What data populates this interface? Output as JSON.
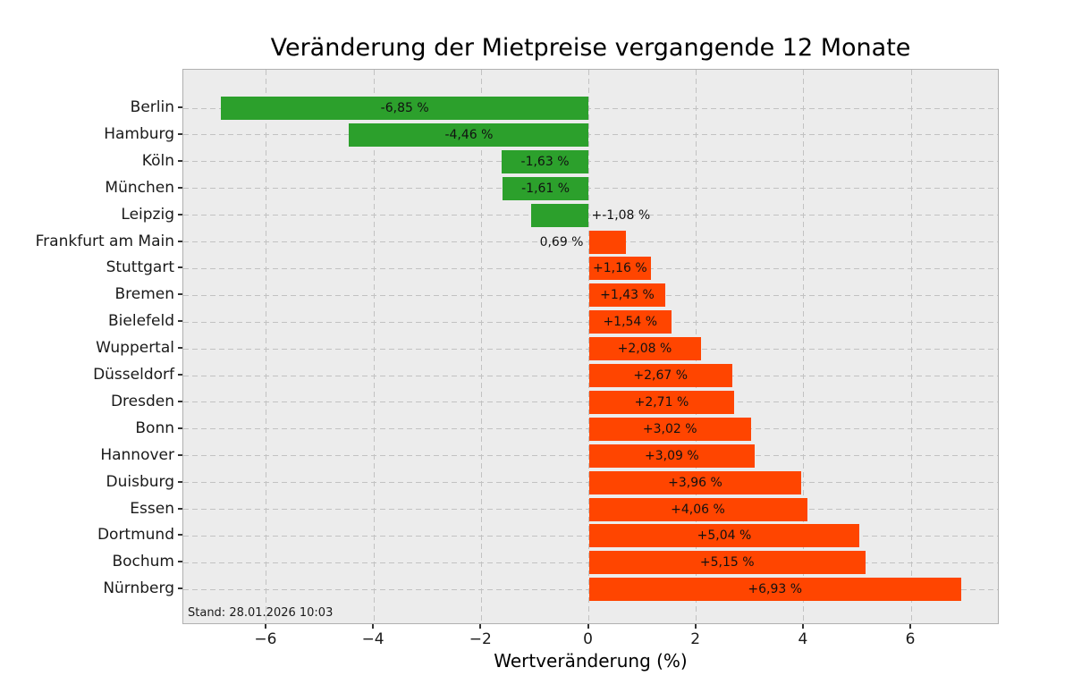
{
  "chart_data": {
    "type": "bar",
    "orientation": "horizontal",
    "title": "Veränderung der Mietpreise vergangende 12 Monate",
    "xlabel": "Wertveränderung (%)",
    "ylabel": "",
    "annotation": "Stand: 28.01.2026 10:03",
    "grid": true,
    "legend": false,
    "xlim": [
      -7.55,
      7.65
    ],
    "xticks": [
      -6,
      -4,
      -2,
      0,
      2,
      4,
      6
    ],
    "xtick_labels": [
      "−6",
      "−4",
      "−2",
      "0",
      "2",
      "4",
      "6"
    ],
    "categories": [
      "Berlin",
      "Hamburg",
      "Köln",
      "München",
      "Leipzig",
      "Frankfurt am Main",
      "Stuttgart",
      "Bremen",
      "Bielefeld",
      "Wuppertal",
      "Düsseldorf",
      "Dresden",
      "Bonn",
      "Hannover",
      "Duisburg",
      "Essen",
      "Dortmund",
      "Bochum",
      "Nürnberg"
    ],
    "values": [
      -6.85,
      -4.46,
      -1.63,
      -1.61,
      -1.08,
      0.69,
      1.16,
      1.43,
      1.54,
      2.08,
      2.67,
      2.71,
      3.02,
      3.09,
      3.96,
      4.06,
      5.04,
      5.15,
      6.93
    ],
    "bar_labels": [
      "-6,85 %",
      "-4,46 %",
      "-1,63 %",
      "-1,61 %",
      "+-1,08 %",
      "0,69 %",
      "+1,16 %",
      "+1,43 %",
      "+1,54 %",
      "+2,08 %",
      "+2,67 %",
      "+2,71 %",
      "+3,02 %",
      "+3,09 %",
      "+3,96 %",
      "+4,06 %",
      "+5,04 %",
      "+5,15 %",
      "+6,93 %"
    ],
    "bar_label_placement": [
      "center",
      "center",
      "center",
      "center",
      "outside-right",
      "outside-left",
      "center",
      "center",
      "center",
      "center",
      "center",
      "center",
      "center",
      "center",
      "center",
      "center",
      "center",
      "center",
      "center"
    ],
    "colors": {
      "negative_bar": "#2ca02c",
      "positive_bar": "#ff4500",
      "plot_background": "#ececec",
      "grid_line": "#c2c2c2",
      "label_text": "#111111"
    }
  }
}
